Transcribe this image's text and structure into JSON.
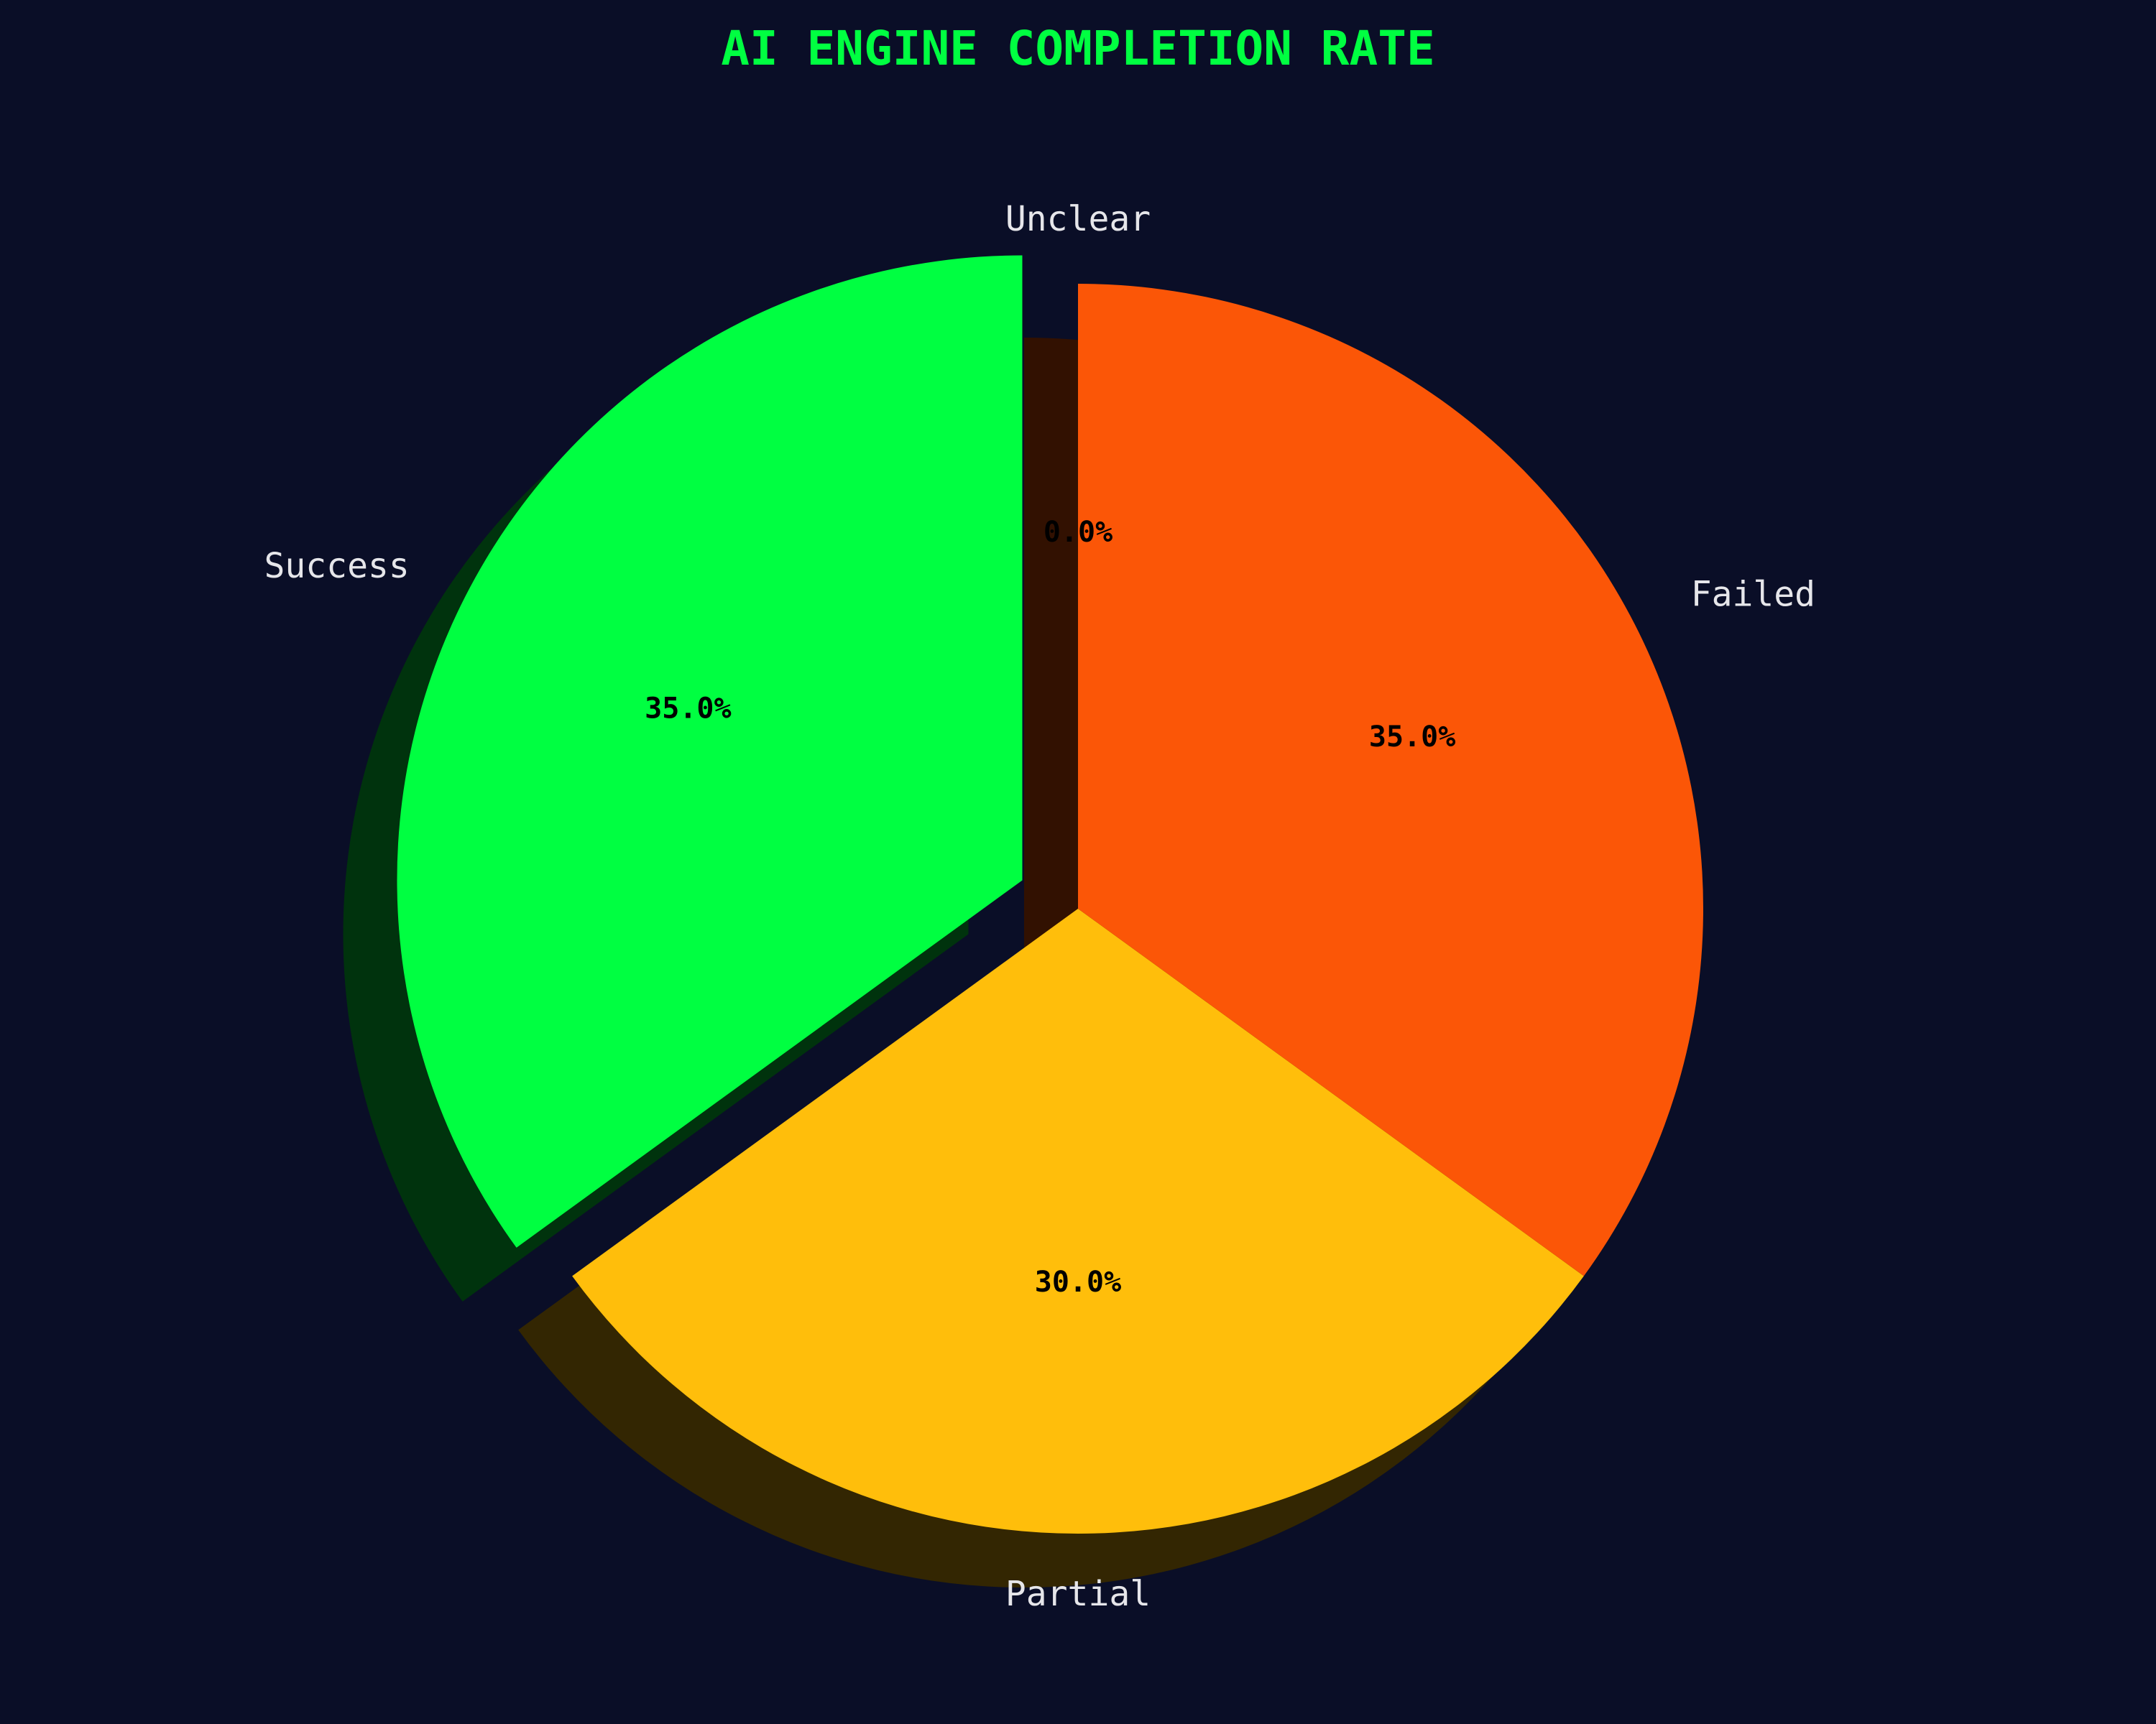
{
  "chart_data": {
    "type": "pie",
    "title": "AI ENGINE COMPLETION RATE",
    "categories": [
      "Success",
      "Partial",
      "Failed",
      "Unclear"
    ],
    "values": [
      35.0,
      30.0,
      35.0,
      0.0
    ],
    "percent_labels": [
      "35.0%",
      "30.0%",
      "35.0%",
      "0.0%"
    ],
    "colors": [
      "#00ff41",
      "#ffbe0b",
      "#fb5607",
      "#c0392b"
    ],
    "start_angle_deg": 90,
    "direction": "counterclockwise",
    "exploded": [
      "Success"
    ],
    "shadow": true,
    "legend": "none"
  },
  "theme": {
    "background": "#0a0e27",
    "title_color": "#00ff41",
    "label_color": "#e6e6ea",
    "pct_color": "#000000"
  }
}
